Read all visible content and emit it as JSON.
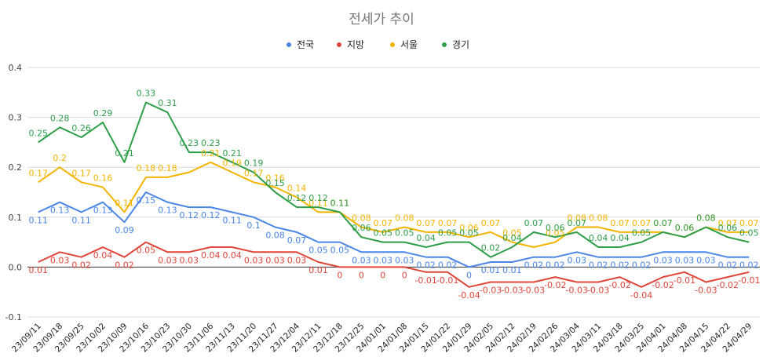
{
  "chart_data": {
    "type": "line",
    "title": "전세가 추이",
    "legend_position": "top",
    "ylim": [
      -0.1,
      0.4
    ],
    "yticks": [
      "0.4",
      "0.3",
      "0.2",
      "0.1",
      "0.0",
      "-0.1"
    ],
    "grid": true,
    "categories": [
      "23/09/11",
      "23/09/18",
      "23/09/25",
      "23/10/02",
      "23/10/09",
      "23/10/16",
      "23/10/23",
      "23/10/30",
      "23/11/06",
      "23/11/13",
      "23/11/20",
      "23/11/27",
      "23/12/04",
      "23/12/11",
      "23/12/18",
      "23/12/25",
      "24/01/01",
      "24/01/08",
      "24/01/15",
      "24/01/22",
      "24/01/29",
      "24/02/05",
      "24/02/12",
      "24/02/19",
      "24/02/26",
      "24/03/04",
      "24/03/11",
      "24/03/18",
      "24/03/25",
      "24/04/01",
      "24/04/08",
      "24/04/15",
      "24/04/22",
      "24/04/29"
    ],
    "series": [
      {
        "name": "전국",
        "color": "#4a86e8",
        "label_pos": "below",
        "values": [
          0.11,
          0.13,
          0.11,
          0.13,
          0.09,
          0.15,
          0.13,
          0.12,
          0.12,
          0.11,
          0.1,
          0.08,
          0.07,
          0.05,
          0.05,
          0.03,
          0.03,
          0.03,
          0.02,
          0.02,
          0,
          0.01,
          0.01,
          0.02,
          0.02,
          0.03,
          0.02,
          0.02,
          0.02,
          0.03,
          0.03,
          0.03,
          0.02,
          0.02
        ],
        "labels": [
          "0.11",
          "0.13",
          "0.11",
          "0.13",
          "0.09",
          "0.15",
          "0.13",
          "0.12",
          "0.12",
          "0.11",
          "0.1",
          "0.08",
          "0.07",
          "0.05",
          "0.05",
          "0.03",
          "0.03",
          "0.03",
          "0.02",
          "0.02",
          "0",
          "0.01",
          "0.01",
          "0.02",
          "0.02",
          "0.03",
          "0.02",
          "0.02",
          "0.02",
          "0.03",
          "0.03",
          "0.03",
          "0.02",
          "0.02"
        ]
      },
      {
        "name": "지방",
        "color": "#e0453a",
        "label_pos": "below",
        "values": [
          0.01,
          0.03,
          0.02,
          0.04,
          0.02,
          0.05,
          0.03,
          0.03,
          0.04,
          0.04,
          0.03,
          0.03,
          0.03,
          0.01,
          0,
          0,
          0,
          0,
          -0.01,
          -0.01,
          -0.04,
          -0.03,
          -0.03,
          -0.03,
          -0.02,
          -0.03,
          -0.03,
          -0.02,
          -0.04,
          -0.02,
          -0.01,
          -0.03,
          -0.02,
          -0.01
        ],
        "labels": [
          "0.01",
          "0.03",
          "0.02",
          "0.04",
          "0.02",
          "0.05",
          "0.03",
          "0.03",
          "0.04",
          "0.04",
          "0.03",
          "0.03",
          "0.03",
          "0.01",
          "0",
          "0",
          "0",
          "0",
          "-0.01",
          "-0.01",
          "-0.04",
          "-0.03",
          "-0.03",
          "-0.03",
          "-0.02",
          "-0.03",
          "-0.03",
          "-0.02",
          "-0.04",
          "-0.02",
          "-0.01",
          "-0.03",
          "-0.02",
          "-0.01"
        ]
      },
      {
        "name": "서울",
        "color": "#f4b400",
        "label_pos": "above",
        "values": [
          0.17,
          0.2,
          0.17,
          0.16,
          0.11,
          0.18,
          0.18,
          0.19,
          0.21,
          0.19,
          0.17,
          0.16,
          0.14,
          0.11,
          0.11,
          0.08,
          0.07,
          0.08,
          0.07,
          0.07,
          0.06,
          0.07,
          0.05,
          0.04,
          0.05,
          0.08,
          0.08,
          0.07,
          0.07,
          0.07,
          0.06,
          0.08,
          0.07,
          0.07
        ],
        "labels": [
          "0.17",
          "0.2",
          "0.17",
          "0.16",
          "0.11",
          "0.18",
          "0.18",
          "",
          "0.21",
          "0.19",
          "0.17",
          "0.16",
          "0.14",
          "0.11",
          "0.11",
          "0.08",
          "0.07",
          "0.08",
          "0.07",
          "0.07",
          "0.06",
          "0.07",
          "0.05",
          "",
          "0.05",
          "0.08",
          "0.08",
          "0.07",
          "0.07",
          "0.07",
          "0.06",
          "0.08",
          "0.07",
          "0.07"
        ]
      },
      {
        "name": "경기",
        "color": "#2e9e49",
        "label_pos": "above",
        "values": [
          0.25,
          0.28,
          0.26,
          0.29,
          0.21,
          0.33,
          0.31,
          0.23,
          0.23,
          0.21,
          0.19,
          0.15,
          0.12,
          0.12,
          0.11,
          0.06,
          0.05,
          0.05,
          0.04,
          0.05,
          0.05,
          0.02,
          0.04,
          0.07,
          0.06,
          0.07,
          0.04,
          0.04,
          0.05,
          0.07,
          0.06,
          0.08,
          0.06,
          0.05
        ],
        "labels": [
          "0.25",
          "0.28",
          "0.26",
          "0.29",
          "0.21",
          "0.33",
          "0.31",
          "0.23",
          "0.23",
          "0.21",
          "0.19",
          "0.15",
          "0.12",
          "0.12",
          "0.11",
          "0.06",
          "0.05",
          "0.05",
          "0.04",
          "0.05",
          "0.05",
          "0.02",
          "0.04",
          "0.07",
          "0.06",
          "0.07",
          "0.04",
          "0.04",
          "0.05",
          "0.07",
          "0.06",
          "0.08",
          "0.06",
          "0.05"
        ]
      }
    ]
  }
}
